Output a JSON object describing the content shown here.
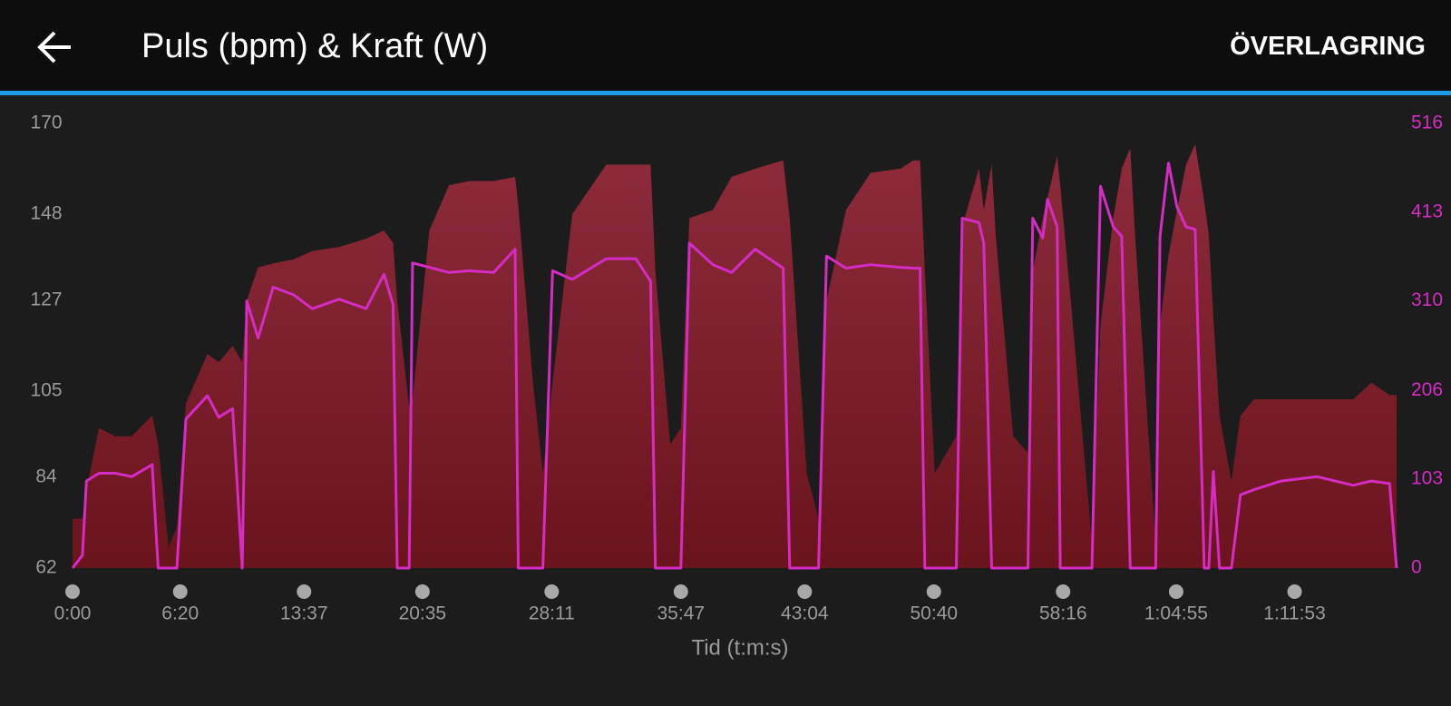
{
  "header": {
    "title": "Puls (bpm) & Kraft (W)",
    "action": "ÖVERLAGRING"
  },
  "chart_data": {
    "type": "area-line",
    "x_label": "Tid (t:m:s)",
    "x": [
      0,
      35,
      49,
      93,
      151,
      209,
      281,
      302,
      339,
      368,
      400,
      476,
      516,
      565,
      599,
      615,
      655,
      708,
      781,
      846,
      941,
      1036,
      1099,
      1131,
      1146,
      1188,
      1200,
      1259,
      1329,
      1399,
      1486,
      1562,
      1573,
      1625,
      1660,
      1694,
      1764,
      1884,
      1988,
      2040,
      2057,
      2109,
      2147,
      2177,
      2260,
      2326,
      2409,
      2508,
      2531,
      2591,
      2633,
      2661,
      2730,
      2817,
      2922,
      2967,
      2991,
      3008,
      3043,
      3119,
      3140,
      3199,
      3216,
      3244,
      3258,
      3320,
      3372,
      3389,
      3424,
      3441,
      3475,
      3486,
      3523,
      3598,
      3628,
      3673,
      3703,
      3733,
      3748,
      3823,
      3838,
      3868,
      3898,
      3930,
      3962,
      3994,
      4010,
      4026,
      4048,
      4090,
      4122,
      4170,
      4265,
      4393,
      4520,
      4584,
      4648,
      4673
    ],
    "series": [
      {
        "color": "#8e2b3c",
        "axis": "y",
        "values": [
          74,
          74,
          81,
          96,
          94,
          94,
          99,
          92,
          67,
          72,
          102,
          114,
          112,
          116,
          112,
          127,
          135,
          136,
          137,
          139,
          140,
          142,
          144,
          141,
          127,
          101,
          103,
          144,
          155,
          156,
          156,
          157,
          150,
          107,
          85,
          107,
          148,
          160,
          160,
          160,
          134,
          92,
          96,
          147,
          149,
          157,
          159,
          161,
          147,
          85,
          74,
          127,
          149,
          158,
          159,
          161,
          161,
          134,
          85,
          94,
          145,
          159,
          149,
          160,
          143,
          94,
          90,
          134,
          147,
          152,
          162,
          155,
          127,
          68,
          121,
          147,
          159,
          164,
          145,
          68,
          121,
          138,
          149,
          160,
          165,
          151,
          143,
          123,
          99,
          83,
          99,
          103,
          103,
          103,
          103,
          107,
          104,
          104
        ]
      },
      {
        "color": "#d42cc4",
        "axis": "y2",
        "values": [
          0,
          15,
          101,
          110,
          110,
          106,
          120,
          0,
          0,
          0,
          173,
          200,
          175,
          185,
          0,
          310,
          267,
          326,
          317,
          301,
          312,
          301,
          341,
          306,
          0,
          0,
          354,
          349,
          343,
          345,
          343,
          370,
          0,
          0,
          0,
          345,
          335,
          359,
          359,
          333,
          0,
          0,
          0,
          377,
          352,
          343,
          370,
          348,
          0,
          0,
          0,
          362,
          348,
          352,
          349,
          348,
          348,
          0,
          0,
          0,
          406,
          401,
          377,
          0,
          0,
          0,
          0,
          406,
          383,
          428,
          396,
          0,
          0,
          0,
          443,
          396,
          385,
          0,
          0,
          0,
          385,
          470,
          419,
          396,
          393,
          0,
          0,
          112,
          0,
          0,
          85,
          91,
          101,
          106,
          96,
          101,
          98,
          0
        ]
      }
    ],
    "xlim": [
      0,
      4673
    ],
    "xticks": [
      {
        "value": 0,
        "label": "0:00"
      },
      {
        "value": 380,
        "label": "6:20"
      },
      {
        "value": 817,
        "label": "13:37"
      },
      {
        "value": 1235,
        "label": "20:35"
      },
      {
        "value": 1691,
        "label": "28:11"
      },
      {
        "value": 2147,
        "label": "35:47"
      },
      {
        "value": 2584,
        "label": "43:04"
      },
      {
        "value": 3040,
        "label": "50:40"
      },
      {
        "value": 3496,
        "label": "58:16"
      },
      {
        "value": 3895,
        "label": "1:04:55"
      },
      {
        "value": 4313,
        "label": "1:11:53"
      }
    ],
    "ylim": [
      62,
      170
    ],
    "yticks": [
      62,
      84,
      105,
      127,
      148,
      170
    ],
    "y2lim": [
      0,
      516
    ],
    "y2ticks": [
      0,
      103,
      206,
      310,
      413,
      516
    ]
  }
}
